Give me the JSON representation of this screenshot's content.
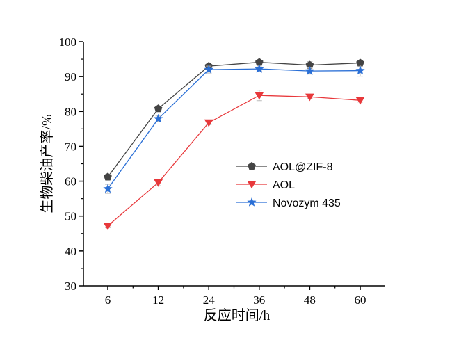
{
  "chart_data": {
    "type": "line",
    "title": "",
    "xlabel": "反应时间/h",
    "ylabel": "生物柴油产率/%",
    "categories": [
      "6",
      "12",
      "24",
      "36",
      "48",
      "60"
    ],
    "ylim": [
      30,
      100
    ],
    "yticks": [
      "30",
      "40",
      "50",
      "60",
      "70",
      "80",
      "90",
      "100"
    ],
    "grid": false,
    "legend_position": "middle-right",
    "series": [
      {
        "name": "AOL@ZIF-8",
        "color": "#444444",
        "marker": "pentagon",
        "values": [
          61.2,
          80.8,
          93.0,
          94.1,
          93.3,
          93.9
        ],
        "errors": [
          0.8,
          0.7,
          0.5,
          0.6,
          1.0,
          0.6
        ]
      },
      {
        "name": "AOL",
        "color": "#e8383b",
        "marker": "triangle-down",
        "values": [
          47.2,
          59.6,
          76.8,
          84.6,
          84.2,
          83.2
        ],
        "errors": [
          0.5,
          0.9,
          0.6,
          1.5,
          0.5,
          0.5
        ]
      },
      {
        "name": "Novozym 435",
        "color": "#2a6fd6",
        "marker": "star",
        "values": [
          57.8,
          77.9,
          92.0,
          92.2,
          91.6,
          91.7
        ],
        "errors": [
          1.3,
          0.8,
          1.0,
          0.6,
          0.9,
          1.6
        ]
      }
    ]
  }
}
